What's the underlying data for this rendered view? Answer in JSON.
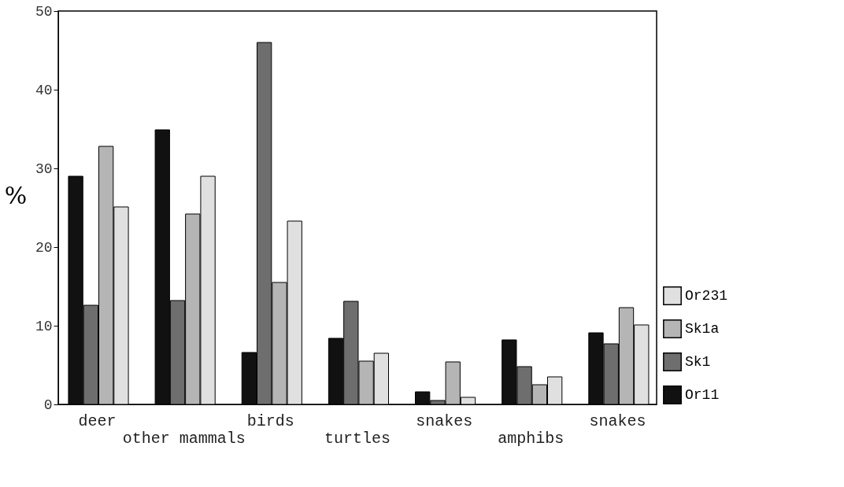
{
  "chart_data": {
    "type": "bar",
    "ylabel": "%",
    "categories": [
      "deer",
      "other mammals",
      "birds",
      "turtles",
      "snakes",
      "amphibs",
      "snakes"
    ],
    "series": [
      {
        "name": "Or11",
        "color": "#111111",
        "values": [
          29,
          34.9,
          6.6,
          8.4,
          1.6,
          8.2,
          9.1
        ]
      },
      {
        "name": "Sk1",
        "color": "#6e6e6e",
        "values": [
          12.6,
          13.2,
          46,
          13.1,
          0.5,
          4.8,
          7.7
        ]
      },
      {
        "name": "Sk1a",
        "color": "#b5b5b5",
        "values": [
          32.8,
          24.2,
          15.5,
          5.5,
          5.4,
          2.5,
          12.3
        ]
      },
      {
        "name": "Or231",
        "color": "#e0e0e0",
        "values": [
          25.1,
          29,
          23.3,
          6.5,
          0.9,
          3.5,
          10.1
        ]
      }
    ],
    "ylim": [
      0,
      50
    ],
    "yticks": [
      0,
      10,
      20,
      30,
      40,
      50
    ],
    "grid": false,
    "legend": "right"
  }
}
